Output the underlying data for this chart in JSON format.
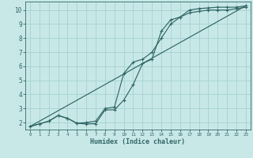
{
  "xlabel": "Humidex (Indice chaleur)",
  "bg_color": "#c8e8e8",
  "grid_color": "#aad4d4",
  "line_color": "#336666",
  "xlim": [
    -0.5,
    23.5
  ],
  "ylim": [
    1.5,
    10.6
  ],
  "xticks": [
    0,
    1,
    2,
    3,
    4,
    5,
    6,
    7,
    8,
    9,
    10,
    11,
    12,
    13,
    14,
    15,
    16,
    17,
    18,
    19,
    20,
    21,
    22,
    23
  ],
  "yticks": [
    2,
    3,
    4,
    5,
    6,
    7,
    8,
    9,
    10
  ],
  "line1_x": [
    0,
    1,
    2,
    3,
    4,
    5,
    6,
    7,
    8,
    9,
    10,
    11,
    12,
    13,
    14,
    15,
    16,
    17,
    18,
    19,
    20,
    21,
    22,
    23
  ],
  "line1_y": [
    1.72,
    1.9,
    2.1,
    2.5,
    2.3,
    1.95,
    1.9,
    1.92,
    2.9,
    2.9,
    3.6,
    4.7,
    6.2,
    6.5,
    8.5,
    9.3,
    9.5,
    10.0,
    10.1,
    10.15,
    10.2,
    10.2,
    10.2,
    10.3
  ],
  "line2_x": [
    0,
    1,
    2,
    3,
    4,
    5,
    6,
    7,
    8,
    9,
    10,
    11,
    12,
    13,
    14,
    15,
    16,
    17,
    18,
    19,
    20,
    21,
    22,
    23
  ],
  "line2_y": [
    1.72,
    1.9,
    2.1,
    2.5,
    2.3,
    1.95,
    2.0,
    2.1,
    3.0,
    3.1,
    5.5,
    6.3,
    6.5,
    7.0,
    8.0,
    9.0,
    9.5,
    9.8,
    9.9,
    10.0,
    10.0,
    10.0,
    10.1,
    10.2
  ],
  "line3_x": [
    0,
    23
  ],
  "line3_y": [
    1.72,
    10.3
  ]
}
